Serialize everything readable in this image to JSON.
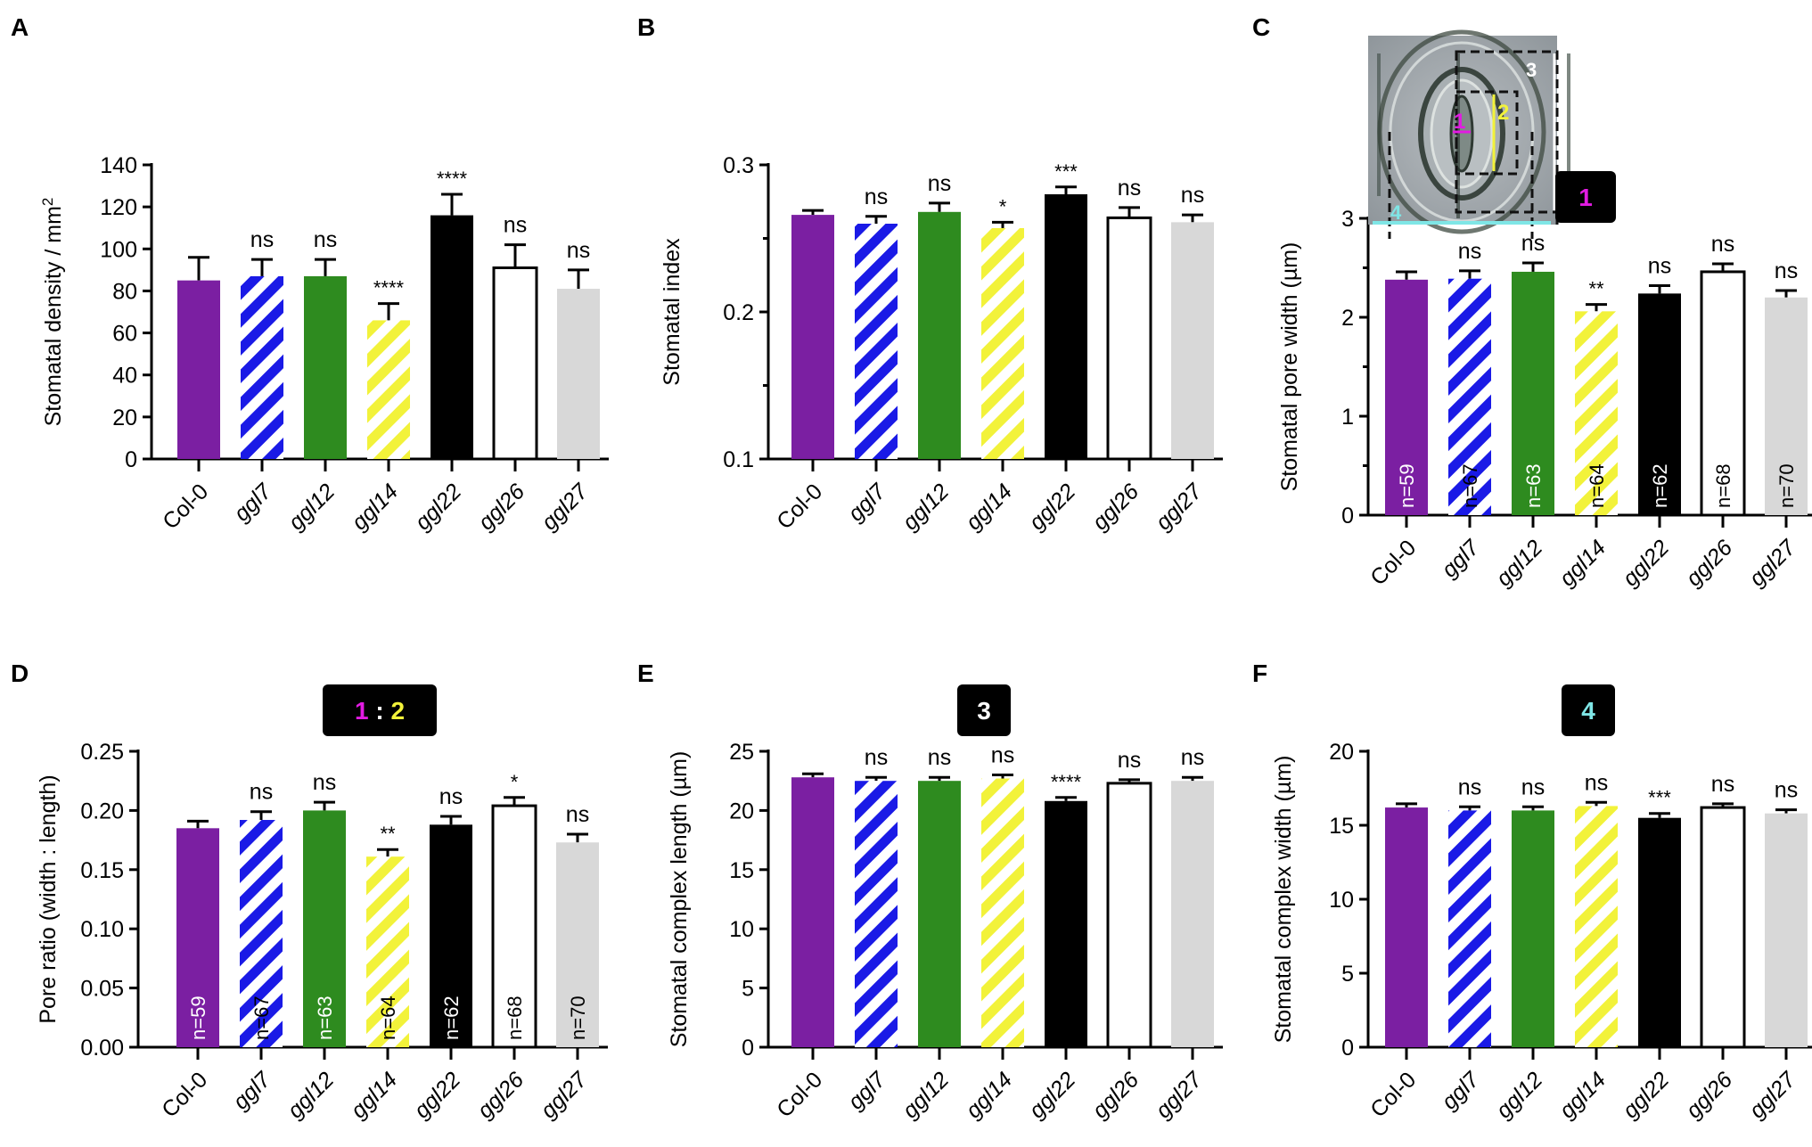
{
  "colors": {
    "purple": "#7B1FA2",
    "blue": "#1A1AE6",
    "green": "#2E8B1F",
    "yellow": "#F2F23A",
    "black": "#000000",
    "white": "#FFFFFF",
    "grey": "#D8D8D8",
    "magenta": "#E21BE2",
    "cyan": "#7FE6E6"
  },
  "chart_data": [
    {
      "panel": "A",
      "type": "bar",
      "ylabel": "Stomatal density / mm",
      "ylabel_sup": "2",
      "ylim": [
        0,
        140
      ],
      "yticks": [
        "0",
        "20",
        "40",
        "60",
        "80",
        "100",
        "120",
        "140"
      ],
      "categories": [
        "Col-0",
        "ggl7",
        "ggl12",
        "ggl14",
        "ggl22",
        "ggl26",
        "ggl27"
      ],
      "values": [
        85,
        87,
        87,
        66,
        116,
        91,
        81
      ],
      "errors": [
        11,
        8,
        8,
        8,
        10,
        11,
        9
      ],
      "significance": [
        "",
        "ns",
        "ns",
        "****",
        "****",
        "ns",
        "ns"
      ],
      "n_labels": []
    },
    {
      "panel": "B",
      "type": "bar",
      "ylabel": "Stomatal index",
      "ylim": [
        0.1,
        0.3
      ],
      "yticks": [
        "0.1",
        "0.2",
        "0.3"
      ],
      "categories": [
        "Col-0",
        "ggl7",
        "ggl12",
        "ggl14",
        "ggl22",
        "ggl26",
        "ggl27"
      ],
      "values": [
        0.266,
        0.26,
        0.268,
        0.257,
        0.28,
        0.264,
        0.261
      ],
      "errors": [
        0.003,
        0.005,
        0.006,
        0.004,
        0.005,
        0.007,
        0.005
      ],
      "significance": [
        "",
        "ns",
        "ns",
        "*",
        "***",
        "ns",
        "ns"
      ],
      "n_labels": []
    },
    {
      "panel": "C",
      "type": "bar",
      "ylabel": "Stomatal pore width (µm)",
      "ylim": [
        0,
        3
      ],
      "yticks": [
        "0",
        "1",
        "2",
        "3"
      ],
      "categories": [
        "Col-0",
        "ggl7",
        "ggl12",
        "ggl14",
        "ggl22",
        "ggl26",
        "ggl27"
      ],
      "values": [
        2.38,
        2.39,
        2.46,
        2.06,
        2.24,
        2.46,
        2.2
      ],
      "errors": [
        0.08,
        0.08,
        0.09,
        0.07,
        0.08,
        0.08,
        0.07
      ],
      "significance": [
        "",
        "ns",
        "ns",
        "**",
        "ns",
        "ns",
        "ns"
      ],
      "n_labels": [
        "n=59",
        "n=67",
        "n=63",
        "n=64",
        "n=62",
        "n=68",
        "n=70"
      ],
      "badge": [
        "1"
      ],
      "inset_labels": [
        "1",
        "2",
        "3",
        "4"
      ]
    },
    {
      "panel": "D",
      "type": "bar",
      "ylabel": "Pore ratio (width : length)",
      "ylim": [
        0,
        0.25
      ],
      "yticks": [
        "0.00",
        "0.05",
        "0.10",
        "0.15",
        "0.20",
        "0.25"
      ],
      "categories": [
        "Col-0",
        "ggl7",
        "ggl12",
        "ggl14",
        "ggl22",
        "ggl26",
        "ggl27"
      ],
      "values": [
        0.185,
        0.192,
        0.2,
        0.161,
        0.188,
        0.204,
        0.173
      ],
      "errors": [
        0.006,
        0.007,
        0.007,
        0.006,
        0.007,
        0.007,
        0.007
      ],
      "significance": [
        "",
        "ns",
        "ns",
        "**",
        "ns",
        "*",
        "ns"
      ],
      "n_labels": [
        "n=59",
        "n=67",
        "n=63",
        "n=64",
        "n=62",
        "n=68",
        "n=70"
      ],
      "badge": [
        "1",
        " : ",
        "2"
      ]
    },
    {
      "panel": "E",
      "type": "bar",
      "ylabel": "Stomatal complex length (µm)",
      "ylim": [
        0,
        25
      ],
      "yticks": [
        "0",
        "5",
        "10",
        "15",
        "20",
        "25"
      ],
      "categories": [
        "Col-0",
        "ggl7",
        "ggl12",
        "ggl14",
        "ggl22",
        "ggl26",
        "ggl27"
      ],
      "values": [
        22.8,
        22.5,
        22.5,
        22.7,
        20.8,
        22.3,
        22.5
      ],
      "errors": [
        0.3,
        0.3,
        0.3,
        0.3,
        0.3,
        0.3,
        0.3
      ],
      "significance": [
        "",
        "ns",
        "ns",
        "ns",
        "****",
        "ns",
        "ns"
      ],
      "n_labels": [],
      "badge": [
        "3"
      ]
    },
    {
      "panel": "F",
      "type": "bar",
      "ylabel": "Stomatal complex width (µm)",
      "ylim": [
        0,
        20
      ],
      "yticks": [
        "0",
        "5",
        "10",
        "15",
        "20"
      ],
      "categories": [
        "Col-0",
        "ggl7",
        "ggl12",
        "ggl14",
        "ggl22",
        "ggl26",
        "ggl27"
      ],
      "values": [
        16.2,
        16.0,
        16.0,
        16.3,
        15.5,
        16.2,
        15.8
      ],
      "errors": [
        0.25,
        0.25,
        0.25,
        0.25,
        0.3,
        0.25,
        0.25
      ],
      "significance": [
        "",
        "ns",
        "ns",
        "ns",
        "***",
        "ns",
        "ns"
      ],
      "n_labels": [],
      "badge": [
        "4"
      ]
    }
  ]
}
